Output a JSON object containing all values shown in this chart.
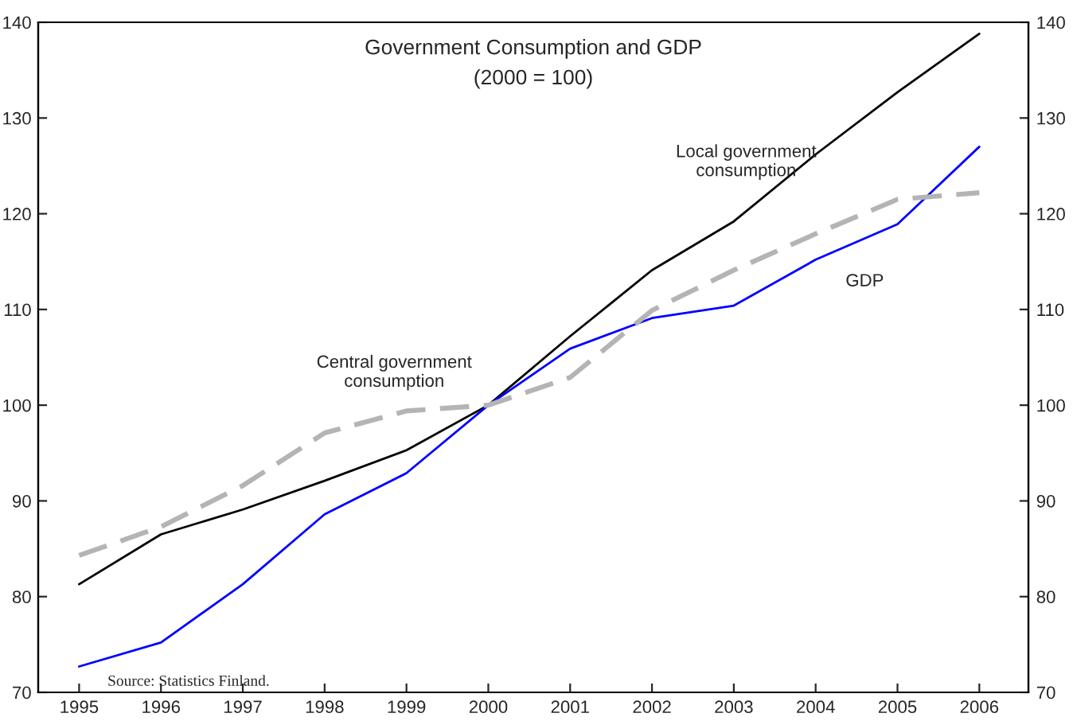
{
  "chart_data": {
    "type": "line",
    "title": "Government Consumption and GDP",
    "subtitle": "(2000 = 100)",
    "x": [
      1995,
      1996,
      1997,
      1998,
      1999,
      2000,
      2001,
      2002,
      2003,
      2004,
      2005,
      2006
    ],
    "xlim": [
      1994.5,
      2006.6
    ],
    "xticks": [
      1995,
      1996,
      1997,
      1998,
      1999,
      2000,
      2001,
      2002,
      2003,
      2004,
      2005,
      2006
    ],
    "ylim": [
      70,
      140
    ],
    "yticks": [
      70,
      80,
      90,
      100,
      110,
      120,
      130,
      140
    ],
    "y2lim": [
      70,
      140
    ],
    "y2ticks": [
      70,
      80,
      90,
      100,
      110,
      120,
      130,
      140
    ],
    "grid": false,
    "legend": false,
    "marker": "none",
    "series": [
      {
        "name": "Local government\nconsumption",
        "color": "#000000",
        "line_style": "solid",
        "values": [
          81.3,
          86.5,
          89.1,
          92.1,
          95.3,
          100,
          107.2,
          114.1,
          119.2,
          126.2,
          132.7,
          138.8
        ]
      },
      {
        "name": "GDP",
        "color": "#0000ff",
        "line_style": "solid",
        "values": [
          72.7,
          75.2,
          81.3,
          88.6,
          92.9,
          100,
          105.9,
          109.1,
          110.4,
          115.2,
          118.9,
          127.0
        ]
      },
      {
        "name": "Central government\nconsumption",
        "color": "#b4b4b4",
        "line_style": "dashed",
        "values": [
          84.3,
          87.3,
          91.6,
          97.1,
          99.4,
          100,
          102.9,
          109.9,
          114.1,
          117.9,
          121.5,
          122.2
        ]
      }
    ],
    "annotations": [
      "Source: Statistics Finland."
    ]
  }
}
